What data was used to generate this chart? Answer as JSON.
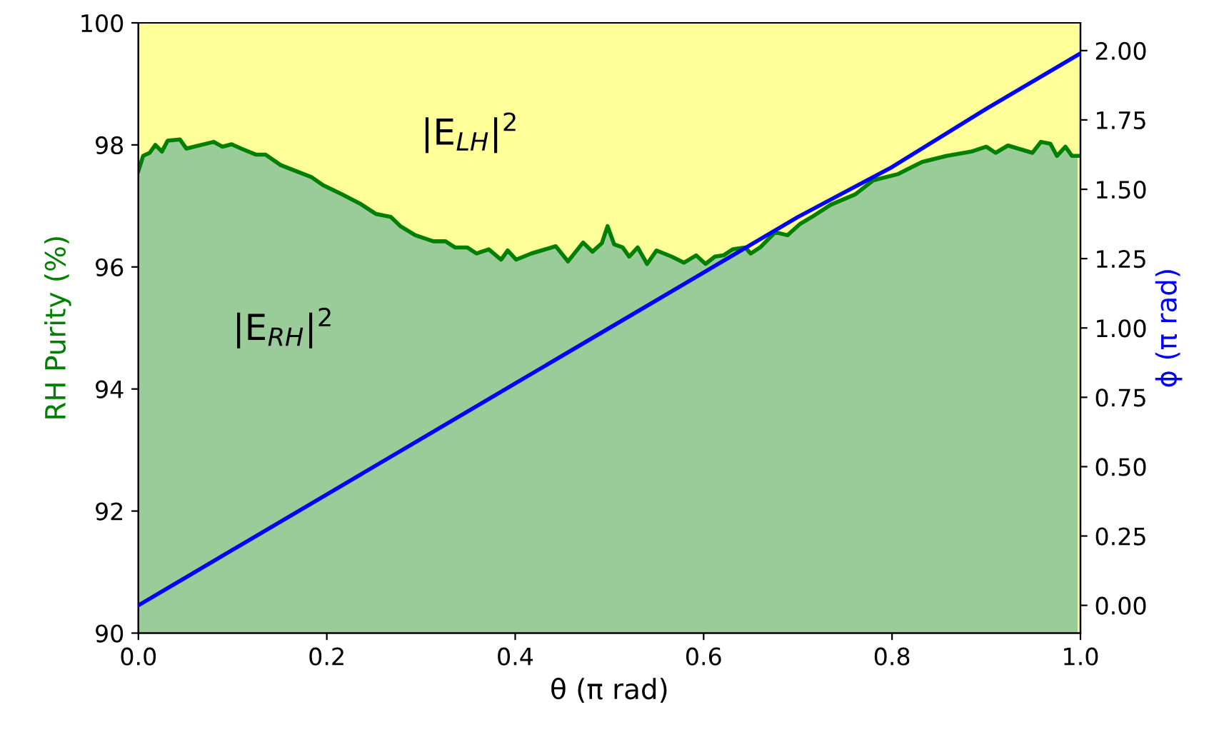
{
  "chart_data": {
    "type": "area",
    "xlabel": "θ (π rad)",
    "ylabel": "RH Purity (%)",
    "y2label": "ϕ (π rad)",
    "annotations": [
      "|E$_{LH}$|$^{2}$",
      "|E$_{RH}$|$^{2}$"
    ],
    "xlim": [
      0,
      1
    ],
    "ylim": [
      90,
      100
    ],
    "y2lim": [
      -0.1,
      2.1
    ],
    "xticks": [
      {
        "value": 0,
        "label": "0.0"
      },
      {
        "value": 0.2,
        "label": "0.2"
      },
      {
        "value": 0.4,
        "label": "0.4"
      },
      {
        "value": 0.6,
        "label": "0.6"
      },
      {
        "value": 0.8,
        "label": "0.8"
      },
      {
        "value": 1,
        "label": "1.0"
      }
    ],
    "yticks": [
      90,
      92,
      94,
      96,
      98,
      100
    ],
    "y2ticks": [
      {
        "value": 0,
        "label": "0.00"
      },
      {
        "value": 0.25,
        "label": "0.25"
      },
      {
        "value": 0.5,
        "label": "0.50"
      },
      {
        "value": 0.75,
        "label": "0.75"
      },
      {
        "value": 1,
        "label": "1.00"
      },
      {
        "value": 1.25,
        "label": "1.25"
      },
      {
        "value": 1.5,
        "label": "1.50"
      },
      {
        "value": 1.75,
        "label": "1.75"
      },
      {
        "value": 2,
        "label": "2.00"
      }
    ],
    "bands": [
      {
        "axis": "y",
        "from": 90,
        "to": 100,
        "color": "#ffff99"
      }
    ],
    "grid": false,
    "series": [
      {
        "color": "#008000",
        "x": [
          0.0,
          0.005,
          0.012,
          0.018,
          0.025,
          0.031,
          0.044,
          0.051,
          0.08,
          0.089,
          0.099,
          0.109,
          0.125,
          0.135,
          0.151,
          0.164,
          0.184,
          0.196,
          0.216,
          0.235,
          0.252,
          0.268,
          0.278,
          0.294,
          0.313,
          0.326,
          0.336,
          0.349,
          0.359,
          0.372,
          0.385,
          0.392,
          0.401,
          0.417,
          0.443,
          0.456,
          0.472,
          0.482,
          0.492,
          0.498,
          0.505,
          0.514,
          0.521,
          0.53,
          0.54,
          0.55,
          0.566,
          0.579,
          0.592,
          0.602,
          0.612,
          0.621,
          0.631,
          0.644,
          0.65,
          0.66,
          0.676,
          0.689,
          0.702,
          0.715,
          0.735,
          0.761,
          0.78,
          0.806,
          0.832,
          0.858,
          0.884,
          0.9,
          0.91,
          0.923,
          0.949,
          0.958,
          0.968,
          0.975,
          0.984,
          0.991,
          0.997
        ],
        "values": [
          97.57,
          97.82,
          97.87,
          98.0,
          97.89,
          98.07,
          98.09,
          97.94,
          98.05,
          97.97,
          98.01,
          97.94,
          97.84,
          97.84,
          97.67,
          97.59,
          97.47,
          97.34,
          97.19,
          97.04,
          96.87,
          96.82,
          96.67,
          96.52,
          96.42,
          96.42,
          96.32,
          96.32,
          96.22,
          96.29,
          96.12,
          96.27,
          96.12,
          96.22,
          96.34,
          96.09,
          96.4,
          96.25,
          96.39,
          96.67,
          96.37,
          96.32,
          96.17,
          96.32,
          96.05,
          96.27,
          96.17,
          96.07,
          96.19,
          96.05,
          96.17,
          96.19,
          96.29,
          96.32,
          96.22,
          96.32,
          96.57,
          96.52,
          96.7,
          96.82,
          97.02,
          97.19,
          97.42,
          97.52,
          97.72,
          97.82,
          97.89,
          97.97,
          97.87,
          97.99,
          97.87,
          98.05,
          98.02,
          97.82,
          97.97,
          97.82,
          97.82
        ]
      },
      {
        "type": "line",
        "axis": "y2",
        "color": "#0000ff",
        "x": [
          0.0,
          0.1,
          0.2,
          0.3,
          0.4,
          0.5,
          0.6,
          0.7,
          0.8,
          0.9,
          1.0
        ],
        "values": [
          0.0,
          0.2,
          0.4,
          0.6,
          0.8,
          1.0,
          1.2,
          1.4,
          1.58,
          1.79,
          1.99
        ]
      }
    ]
  }
}
